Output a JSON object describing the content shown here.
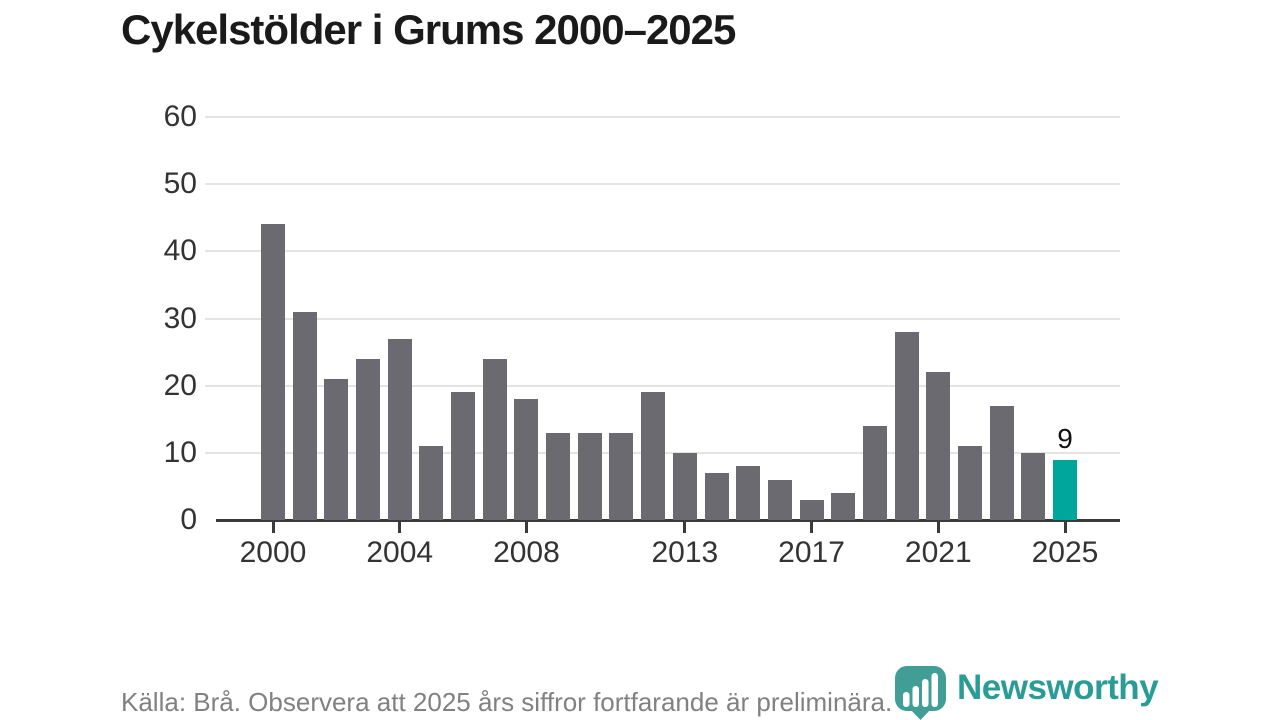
{
  "title": "Cykelstölder i Grums 2000–2025",
  "footer": {
    "source_note": "Källa: Brå. Observera att 2025 års siffror fortfarande är preliminära."
  },
  "brand": {
    "name": "Newsworthy",
    "logo_icon": "newsworthy-pin-barchart-icon"
  },
  "colors": {
    "bar": "#6a6a70",
    "highlight": "#00a69c",
    "grid": "#e4e4e4",
    "axis": "#3a3a3a",
    "tick_text": "#333333",
    "title_text": "#1a1a1a",
    "footer_text": "#818181",
    "brand_text": "#2a9c96",
    "logo_fill": "#409e97"
  },
  "chart_data": {
    "type": "bar",
    "title": "Cykelstölder i Grums 2000–2025",
    "xlabel": "",
    "ylabel": "",
    "x": [
      2000,
      2001,
      2002,
      2003,
      2004,
      2005,
      2006,
      2007,
      2008,
      2009,
      2010,
      2011,
      2012,
      2013,
      2014,
      2015,
      2016,
      2017,
      2018,
      2019,
      2020,
      2021,
      2022,
      2023,
      2024,
      2025
    ],
    "values": [
      44,
      31,
      21,
      24,
      27,
      11,
      19,
      24,
      18,
      13,
      13,
      13,
      19,
      10,
      7,
      8,
      6,
      3,
      4,
      14,
      28,
      22,
      11,
      17,
      10,
      9
    ],
    "ylim": [
      0,
      60
    ],
    "yticks": [
      0,
      10,
      20,
      30,
      40,
      50,
      60
    ],
    "xticks": [
      2000,
      2004,
      2008,
      2013,
      2017,
      2021,
      2025
    ],
    "grid": true,
    "legend": null,
    "highlight": {
      "year": 2025,
      "label": "9"
    }
  }
}
